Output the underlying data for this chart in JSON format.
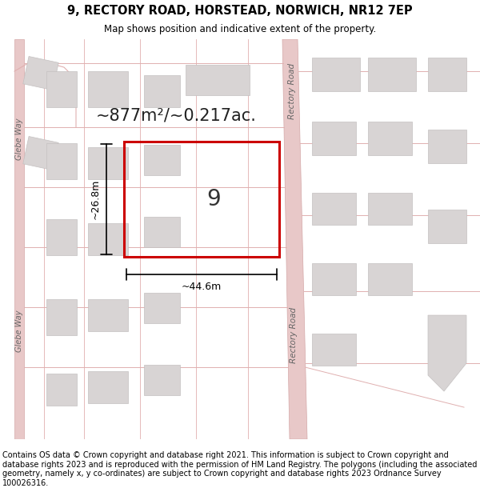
{
  "title": "9, RECTORY ROAD, HORSTEAD, NORWICH, NR12 7EP",
  "subtitle": "Map shows position and indicative extent of the property.",
  "footer": "Contains OS data © Crown copyright and database right 2021. This information is subject to Crown copyright and database rights 2023 and is reproduced with the permission of HM Land Registry. The polygons (including the associated geometry, namely x, y co-ordinates) are subject to Crown copyright and database rights 2023 Ordnance Survey 100026316.",
  "area_label": "~877m²/~0.217ac.",
  "number_label": "9",
  "dim_width": "~44.6m",
  "dim_height": "~26.8m",
  "map_bg": "#f9f4f4",
  "road_fill": "#e8c8c8",
  "road_edge": "#d4a8a8",
  "bld_fill": "#d8d4d4",
  "bld_edge": "#c4c0c0",
  "plot_color": "#cc0000",
  "plot_lw": 2.2,
  "road_line_color": "#e0b0b0",
  "label_color": "#888888",
  "road_label_right1": "Rectory Road",
  "road_label_right2": "Rectory Road",
  "road_label_left1": "Glebe Way",
  "road_label_left2": "Glebe Way",
  "title_fontsize": 10.5,
  "subtitle_fontsize": 8.5,
  "footer_fontsize": 7.0,
  "area_fontsize": 15,
  "num_fontsize": 20
}
